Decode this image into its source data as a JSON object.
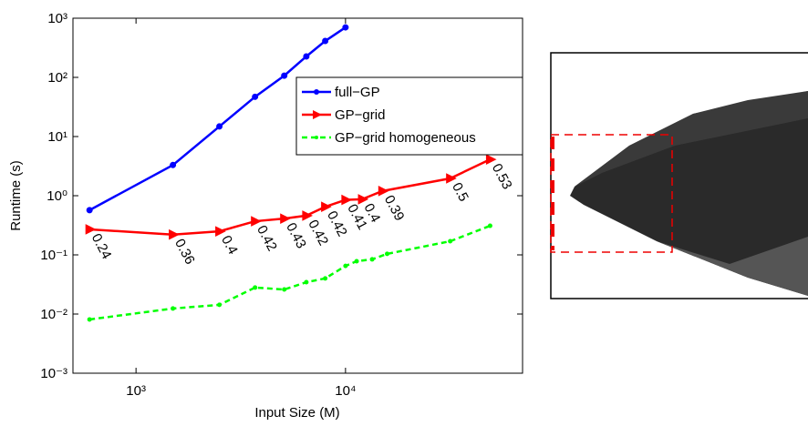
{
  "chart_data": {
    "type": "line",
    "log_x": true,
    "log_y": true,
    "xlabel": "Input Size (M)",
    "ylabel": "Runtime (s)",
    "xlim": [
      500,
      70000
    ],
    "ylim": [
      0.001,
      1000
    ],
    "xticks": [
      {
        "value": 1000,
        "label": "10³"
      },
      {
        "value": 10000,
        "label": "10⁴"
      }
    ],
    "yticks": [
      {
        "value": 0.001,
        "label": "10⁻³"
      },
      {
        "value": 0.01,
        "label": "10⁻²"
      },
      {
        "value": 0.1,
        "label": "10⁻¹"
      },
      {
        "value": 1,
        "label": "10⁰"
      },
      {
        "value": 10,
        "label": "10¹"
      },
      {
        "value": 100,
        "label": "10²"
      },
      {
        "value": 1000,
        "label": "10³"
      }
    ],
    "legend": "upper right",
    "series": [
      {
        "name": "full−GP",
        "color": "#0000ff",
        "marker": "circle",
        "x": [
          600,
          1500,
          2500,
          3700,
          5100,
          6500,
          8000,
          10000
        ],
        "values": [
          0.57,
          3.3,
          14.8,
          47,
          107,
          226,
          412,
          700
        ]
      },
      {
        "name": "GP−grid",
        "color": "#ff0000",
        "marker": "triangle",
        "x": [
          600,
          1500,
          2500,
          3700,
          5100,
          6500,
          8000,
          10000,
          12000,
          15000,
          31600,
          49000
        ],
        "values": [
          0.27,
          0.22,
          0.25,
          0.37,
          0.41,
          0.46,
          0.65,
          0.85,
          0.87,
          1.2,
          1.96,
          4.1
        ],
        "point_labels": [
          "0.24",
          "0.36",
          "0.4",
          "0.42",
          "0.43",
          "0.42",
          "0.42",
          "0.41",
          "0.4",
          "0.39",
          "0.5",
          "0.53"
        ]
      },
      {
        "name": "GP−grid homogeneous",
        "color": "#00ff00",
        "marker": "dot",
        "dashed": true,
        "x": [
          600,
          1500,
          2500,
          3700,
          5100,
          6500,
          8000,
          10000,
          11300,
          13400,
          15800,
          31600,
          49000
        ],
        "values": [
          0.0081,
          0.0124,
          0.0143,
          0.028,
          0.026,
          0.0345,
          0.04,
          0.065,
          0.078,
          0.084,
          0.104,
          0.17,
          0.31
        ]
      }
    ]
  }
}
